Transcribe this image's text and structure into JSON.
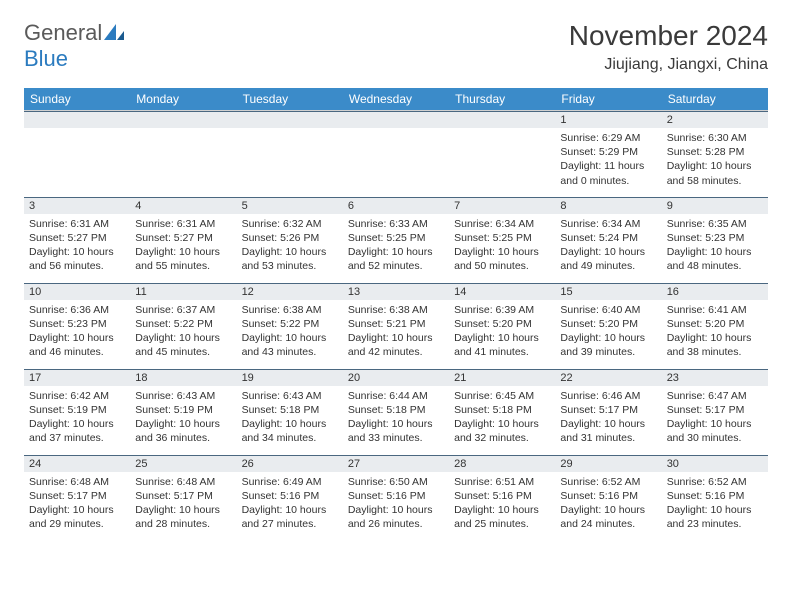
{
  "logo": {
    "gray": "General",
    "blue": "Blue"
  },
  "title": "November 2024",
  "location": "Jiujiang, Jiangxi, China",
  "colors": {
    "header_bg": "#3b8bc9",
    "header_text": "#ffffff",
    "daynum_bg": "#e9ecef",
    "cell_border": "#4a6780",
    "logo_gray": "#5a5a5a",
    "logo_blue": "#2b7bbf"
  },
  "weekdays": [
    "Sunday",
    "Monday",
    "Tuesday",
    "Wednesday",
    "Thursday",
    "Friday",
    "Saturday"
  ],
  "weeks": [
    [
      null,
      null,
      null,
      null,
      null,
      {
        "n": "1",
        "sr": "Sunrise: 6:29 AM",
        "ss": "Sunset: 5:29 PM",
        "dl": "Daylight: 11 hours and 0 minutes."
      },
      {
        "n": "2",
        "sr": "Sunrise: 6:30 AM",
        "ss": "Sunset: 5:28 PM",
        "dl": "Daylight: 10 hours and 58 minutes."
      }
    ],
    [
      {
        "n": "3",
        "sr": "Sunrise: 6:31 AM",
        "ss": "Sunset: 5:27 PM",
        "dl": "Daylight: 10 hours and 56 minutes."
      },
      {
        "n": "4",
        "sr": "Sunrise: 6:31 AM",
        "ss": "Sunset: 5:27 PM",
        "dl": "Daylight: 10 hours and 55 minutes."
      },
      {
        "n": "5",
        "sr": "Sunrise: 6:32 AM",
        "ss": "Sunset: 5:26 PM",
        "dl": "Daylight: 10 hours and 53 minutes."
      },
      {
        "n": "6",
        "sr": "Sunrise: 6:33 AM",
        "ss": "Sunset: 5:25 PM",
        "dl": "Daylight: 10 hours and 52 minutes."
      },
      {
        "n": "7",
        "sr": "Sunrise: 6:34 AM",
        "ss": "Sunset: 5:25 PM",
        "dl": "Daylight: 10 hours and 50 minutes."
      },
      {
        "n": "8",
        "sr": "Sunrise: 6:34 AM",
        "ss": "Sunset: 5:24 PM",
        "dl": "Daylight: 10 hours and 49 minutes."
      },
      {
        "n": "9",
        "sr": "Sunrise: 6:35 AM",
        "ss": "Sunset: 5:23 PM",
        "dl": "Daylight: 10 hours and 48 minutes."
      }
    ],
    [
      {
        "n": "10",
        "sr": "Sunrise: 6:36 AM",
        "ss": "Sunset: 5:23 PM",
        "dl": "Daylight: 10 hours and 46 minutes."
      },
      {
        "n": "11",
        "sr": "Sunrise: 6:37 AM",
        "ss": "Sunset: 5:22 PM",
        "dl": "Daylight: 10 hours and 45 minutes."
      },
      {
        "n": "12",
        "sr": "Sunrise: 6:38 AM",
        "ss": "Sunset: 5:22 PM",
        "dl": "Daylight: 10 hours and 43 minutes."
      },
      {
        "n": "13",
        "sr": "Sunrise: 6:38 AM",
        "ss": "Sunset: 5:21 PM",
        "dl": "Daylight: 10 hours and 42 minutes."
      },
      {
        "n": "14",
        "sr": "Sunrise: 6:39 AM",
        "ss": "Sunset: 5:20 PM",
        "dl": "Daylight: 10 hours and 41 minutes."
      },
      {
        "n": "15",
        "sr": "Sunrise: 6:40 AM",
        "ss": "Sunset: 5:20 PM",
        "dl": "Daylight: 10 hours and 39 minutes."
      },
      {
        "n": "16",
        "sr": "Sunrise: 6:41 AM",
        "ss": "Sunset: 5:20 PM",
        "dl": "Daylight: 10 hours and 38 minutes."
      }
    ],
    [
      {
        "n": "17",
        "sr": "Sunrise: 6:42 AM",
        "ss": "Sunset: 5:19 PM",
        "dl": "Daylight: 10 hours and 37 minutes."
      },
      {
        "n": "18",
        "sr": "Sunrise: 6:43 AM",
        "ss": "Sunset: 5:19 PM",
        "dl": "Daylight: 10 hours and 36 minutes."
      },
      {
        "n": "19",
        "sr": "Sunrise: 6:43 AM",
        "ss": "Sunset: 5:18 PM",
        "dl": "Daylight: 10 hours and 34 minutes."
      },
      {
        "n": "20",
        "sr": "Sunrise: 6:44 AM",
        "ss": "Sunset: 5:18 PM",
        "dl": "Daylight: 10 hours and 33 minutes."
      },
      {
        "n": "21",
        "sr": "Sunrise: 6:45 AM",
        "ss": "Sunset: 5:18 PM",
        "dl": "Daylight: 10 hours and 32 minutes."
      },
      {
        "n": "22",
        "sr": "Sunrise: 6:46 AM",
        "ss": "Sunset: 5:17 PM",
        "dl": "Daylight: 10 hours and 31 minutes."
      },
      {
        "n": "23",
        "sr": "Sunrise: 6:47 AM",
        "ss": "Sunset: 5:17 PM",
        "dl": "Daylight: 10 hours and 30 minutes."
      }
    ],
    [
      {
        "n": "24",
        "sr": "Sunrise: 6:48 AM",
        "ss": "Sunset: 5:17 PM",
        "dl": "Daylight: 10 hours and 29 minutes."
      },
      {
        "n": "25",
        "sr": "Sunrise: 6:48 AM",
        "ss": "Sunset: 5:17 PM",
        "dl": "Daylight: 10 hours and 28 minutes."
      },
      {
        "n": "26",
        "sr": "Sunrise: 6:49 AM",
        "ss": "Sunset: 5:16 PM",
        "dl": "Daylight: 10 hours and 27 minutes."
      },
      {
        "n": "27",
        "sr": "Sunrise: 6:50 AM",
        "ss": "Sunset: 5:16 PM",
        "dl": "Daylight: 10 hours and 26 minutes."
      },
      {
        "n": "28",
        "sr": "Sunrise: 6:51 AM",
        "ss": "Sunset: 5:16 PM",
        "dl": "Daylight: 10 hours and 25 minutes."
      },
      {
        "n": "29",
        "sr": "Sunrise: 6:52 AM",
        "ss": "Sunset: 5:16 PM",
        "dl": "Daylight: 10 hours and 24 minutes."
      },
      {
        "n": "30",
        "sr": "Sunrise: 6:52 AM",
        "ss": "Sunset: 5:16 PM",
        "dl": "Daylight: 10 hours and 23 minutes."
      }
    ]
  ]
}
